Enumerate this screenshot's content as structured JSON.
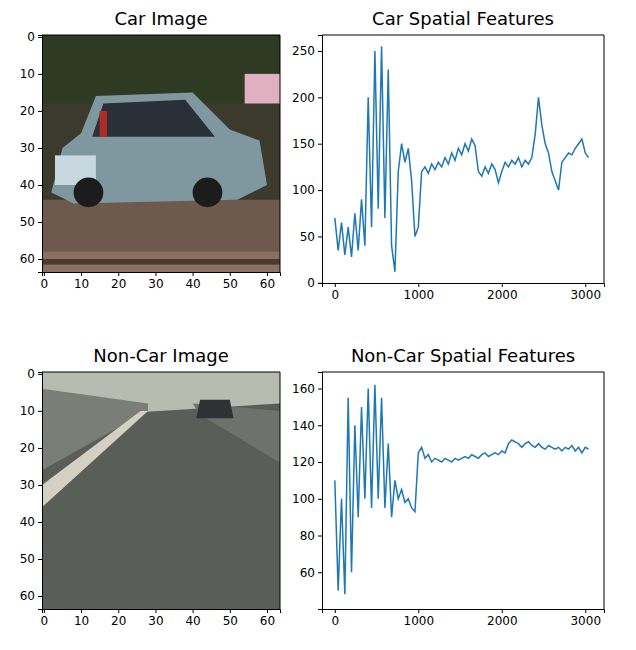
{
  "chart_data": [
    {
      "type": "image",
      "title": "Car Image",
      "xlim": [
        -0.5,
        63.5
      ],
      "ylim": [
        63.5,
        -0.5
      ],
      "xticks": [
        0,
        10,
        20,
        30,
        40,
        50,
        60
      ],
      "yticks": [
        0,
        10,
        20,
        30,
        40,
        50,
        60
      ]
    },
    {
      "type": "line",
      "title": "Car Spatial Features",
      "color": "#1f77b4",
      "x": [
        0,
        40,
        80,
        120,
        160,
        200,
        240,
        280,
        320,
        360,
        400,
        440,
        480,
        520,
        560,
        600,
        640,
        680,
        720,
        760,
        800,
        840,
        880,
        920,
        960,
        1000,
        1040,
        1080,
        1120,
        1160,
        1200,
        1240,
        1280,
        1320,
        1360,
        1400,
        1440,
        1480,
        1520,
        1560,
        1600,
        1640,
        1680,
        1720,
        1760,
        1800,
        1840,
        1880,
        1920,
        1960,
        2000,
        2040,
        2080,
        2120,
        2160,
        2200,
        2240,
        2280,
        2320,
        2360,
        2400,
        2440,
        2480,
        2520,
        2560,
        2600,
        2640,
        2680,
        2720,
        2760,
        2800,
        2840,
        2880,
        2920,
        2960,
        3000,
        3040
      ],
      "values": [
        70,
        35,
        65,
        30,
        60,
        28,
        75,
        35,
        90,
        40,
        200,
        60,
        250,
        80,
        255,
        70,
        230,
        40,
        12,
        120,
        150,
        130,
        145,
        110,
        50,
        60,
        120,
        125,
        118,
        128,
        122,
        130,
        125,
        135,
        128,
        140,
        132,
        145,
        138,
        150,
        142,
        155,
        148,
        120,
        115,
        125,
        118,
        128,
        122,
        108,
        120,
        130,
        125,
        132,
        128,
        135,
        125,
        132,
        128,
        135,
        160,
        200,
        170,
        150,
        140,
        120,
        110,
        100,
        130,
        135,
        140,
        138,
        145,
        150,
        155,
        140,
        135
      ],
      "xlim": [
        -153.6,
        3224.6
      ],
      "ylim": [
        -0.2,
        267.2
      ],
      "xticks": [
        0,
        1000,
        2000,
        3000
      ],
      "yticks": [
        0,
        50,
        100,
        150,
        200,
        250
      ]
    },
    {
      "type": "image",
      "title": "Non-Car Image",
      "xlim": [
        -0.5,
        63.5
      ],
      "ylim": [
        63.5,
        -0.5
      ],
      "xticks": [
        0,
        10,
        20,
        30,
        40,
        50,
        60
      ],
      "yticks": [
        0,
        10,
        20,
        30,
        40,
        50,
        60
      ]
    },
    {
      "type": "line",
      "title": "Non-Car Spatial Features",
      "color": "#1f77b4",
      "x": [
        0,
        40,
        80,
        120,
        160,
        200,
        240,
        280,
        320,
        360,
        400,
        440,
        480,
        520,
        560,
        600,
        640,
        680,
        720,
        760,
        800,
        840,
        880,
        920,
        960,
        1000,
        1040,
        1080,
        1120,
        1160,
        1200,
        1240,
        1280,
        1320,
        1360,
        1400,
        1440,
        1480,
        1520,
        1560,
        1600,
        1640,
        1680,
        1720,
        1760,
        1800,
        1840,
        1880,
        1920,
        1960,
        2000,
        2040,
        2080,
        2120,
        2160,
        2200,
        2240,
        2280,
        2320,
        2360,
        2400,
        2440,
        2480,
        2520,
        2560,
        2600,
        2640,
        2680,
        2720,
        2760,
        2800,
        2840,
        2880,
        2920,
        2960,
        3000,
        3040
      ],
      "values": [
        110,
        50,
        100,
        48,
        155,
        60,
        140,
        90,
        150,
        100,
        160,
        95,
        162,
        100,
        155,
        95,
        130,
        90,
        110,
        100,
        105,
        98,
        100,
        95,
        93,
        125,
        128,
        122,
        124,
        120,
        122,
        121,
        120,
        122,
        121,
        120,
        122,
        121,
        122,
        123,
        122,
        124,
        123,
        122,
        124,
        125,
        123,
        124,
        125,
        124,
        126,
        125,
        130,
        132,
        131,
        130,
        128,
        130,
        131,
        129,
        128,
        130,
        128,
        127,
        129,
        128,
        127,
        128,
        126,
        128,
        127,
        129,
        126,
        128,
        125,
        128,
        127
      ],
      "xlim": [
        -153.6,
        3224.6
      ],
      "ylim": [
        40,
        169
      ],
      "xticks": [
        0,
        1000,
        2000,
        3000
      ],
      "yticks": [
        60,
        80,
        100,
        120,
        140,
        160
      ]
    }
  ]
}
